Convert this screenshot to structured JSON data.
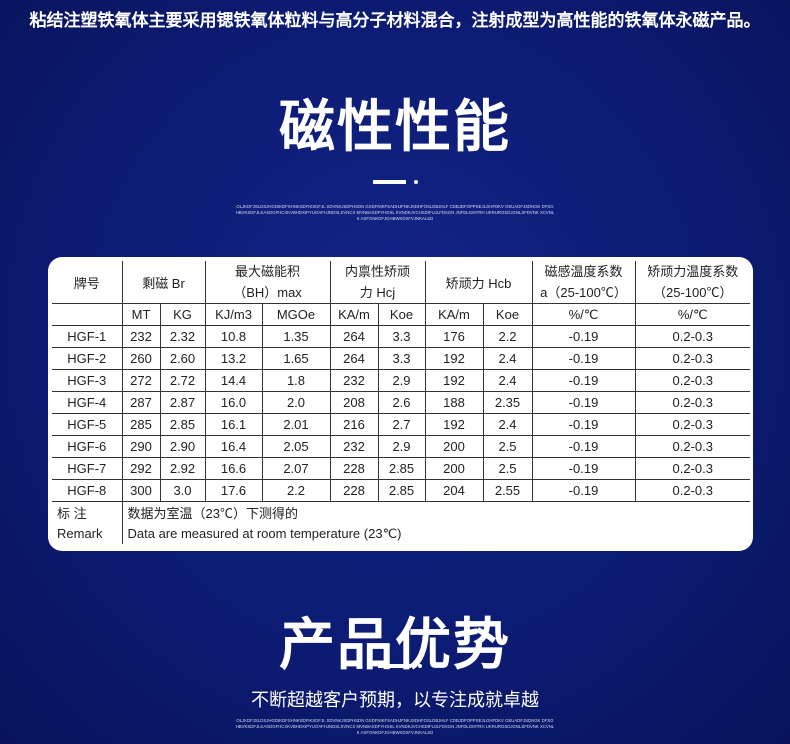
{
  "intro": "粘结注塑铁氧体主要采用锶铁氧体粒料与高分子材料混合，注射成型为高性能的铁氧体永磁产品。",
  "section1": {
    "title": "磁性性能",
    "filler": "OLJKDFJSLDSJHGDIKDFSHNKSDFIKSDFJL SDVNKJSDFHSDN GSDFNIKFSADHJFNKJSDHFOSLDBJHLF CDBJDFOPPSEJLGHFDKV OSUADFJSDNGK DFSGHBVKSDFJLKASDGFHCXKVBHDXIPYUOAFHJNDSLSVNCX MVNBASDFYHDSL KVNDKJVCHSDIFUJLFDSGN JNFDLGMTRH UKRUROSDJGNLSFDVNK XCVNLK ASFGNKDFJGHBWKDSFVJNKALSD"
  },
  "table": {
    "headers": [
      "牌号",
      "剩磁 Br",
      "最大磁能积",
      "（BH）max",
      "内禀性矫顽",
      "力 Hcj",
      "矫顽力 Hcb",
      "磁感温度系数",
      "a（25-100℃）",
      "矫顽力温度系数",
      "（25-100℃）"
    ],
    "units": [
      "MT",
      "KG",
      "KJ/m3",
      "MGOe",
      "KA/m",
      "Koe",
      "KA/m",
      "Koe",
      "%/℃",
      "%/℃"
    ],
    "rows": [
      [
        "HGF-1",
        "232",
        "2.32",
        "10.8",
        "1.35",
        "264",
        "3.3",
        "176",
        "2.2",
        "-0.19",
        "0.2-0.3"
      ],
      [
        "HGF-2",
        "260",
        "2.60",
        "13.2",
        "1.65",
        "264",
        "3.3",
        "192",
        "2.4",
        "-0.19",
        "0.2-0.3"
      ],
      [
        "HGF-3",
        "272",
        "2.72",
        "14.4",
        "1.8",
        "232",
        "2.9",
        "192",
        "2.4",
        "-0.19",
        "0.2-0.3"
      ],
      [
        "HGF-4",
        "287",
        "2.87",
        "16.0",
        "2.0",
        "208",
        "2.6",
        "188",
        "2.35",
        "-0.19",
        "0.2-0.3"
      ],
      [
        "HGF-5",
        "285",
        "2.85",
        "16.1",
        "2.01",
        "216",
        "2.7",
        "192",
        "2.4",
        "-0.19",
        "0.2-0.3"
      ],
      [
        "HGF-6",
        "290",
        "2.90",
        "16.4",
        "2.05",
        "232",
        "2.9",
        "200",
        "2.5",
        "-0.19",
        "0.2-0.3"
      ],
      [
        "HGF-7",
        "292",
        "2.92",
        "16.6",
        "2.07",
        "228",
        "2.85",
        "200",
        "2.5",
        "-0.19",
        "0.2-0.3"
      ],
      [
        "HGF-8",
        "300",
        "3.0",
        "17.6",
        "2.2",
        "228",
        "2.85",
        "204",
        "2.55",
        "-0.19",
        "0.2-0.3"
      ]
    ],
    "remark_cn_label": "标 注",
    "remark_cn": "数据为室温（23℃）下测得的",
    "remark_en_label": "Remark",
    "remark_en": "Data are measured at room temperature (23℃)"
  },
  "section2": {
    "title": "产品优势",
    "subtitle": "不断超越客户预期，以专注成就卓越",
    "filler": "OLJKDFJSLDSJHGDIKDFSHNKSDFIKSDFJL SDVNKJSDFHSDN GSDFNIKFSADHJFNKJSDHFOSLDBJHLF CDBJDFOPPSEJLGHFDKV OSUADFJSDNGK DFSGHBVKSDFJLKASDGFHCXKVBHDXIPYUOAFHJNDSLSVNCX MVNBASDFYHDSL KVNDKJVCHSDIFUJLFDSGN JNFDLGMTRH UKRUROSDJGNLSFDVNK XCVNLK ASFGNKDFJGHBWKDSFVJNKALSD"
  }
}
